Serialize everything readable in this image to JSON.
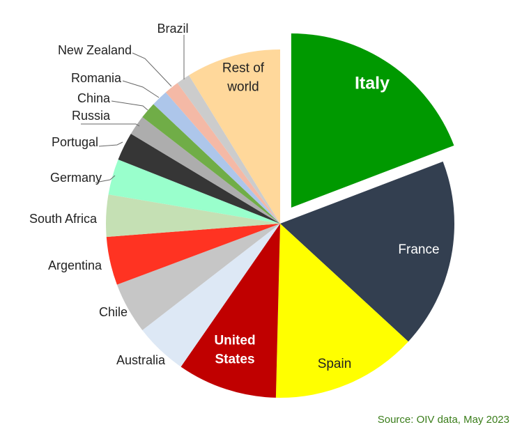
{
  "chart_data": {
    "type": "pie",
    "title": "",
    "unit": "",
    "slices": [
      {
        "name": "Italy",
        "value": 19.7,
        "color": "#009900",
        "label_color": "#ffffff",
        "label_style": "bold-large",
        "exploded": true,
        "label_lines": [
          "Italy"
        ]
      },
      {
        "name": "France",
        "value": 18.1,
        "color": "#333f50",
        "label_color": "#ffffff",
        "label_style": "normal",
        "exploded": false,
        "label_lines": [
          "France"
        ]
      },
      {
        "name": "Spain",
        "value": 13.9,
        "color": "#ffff00",
        "label_color": "#222222",
        "label_style": "normal",
        "exploded": false,
        "label_lines": [
          "Spain"
        ]
      },
      {
        "name": "United States",
        "value": 9.5,
        "color": "#c00000",
        "label_color": "#ffffff",
        "label_style": "bold",
        "exploded": false,
        "label_lines": [
          "United",
          "States"
        ]
      },
      {
        "name": "Australia",
        "value": 5.0,
        "color": "#dde8f5",
        "label_color": "#222222",
        "label_style": "outside",
        "exploded": false,
        "label_lines": [
          "Australia"
        ]
      },
      {
        "name": "Chile",
        "value": 4.9,
        "color": "#c6c6c6",
        "label_color": "#222222",
        "label_style": "outside",
        "exploded": false,
        "label_lines": [
          "Chile"
        ]
      },
      {
        "name": "Argentina",
        "value": 4.6,
        "color": "#ff3322",
        "label_color": "#222222",
        "label_style": "outside",
        "exploded": false,
        "label_lines": [
          "Argentina"
        ]
      },
      {
        "name": "South Africa",
        "value": 4.0,
        "color": "#c5e0b4",
        "label_color": "#222222",
        "label_style": "outside",
        "exploded": false,
        "label_lines": [
          "South Africa"
        ]
      },
      {
        "name": "Germany",
        "value": 3.4,
        "color": "#99ffcc",
        "label_color": "#222222",
        "label_style": "outside",
        "exploded": false,
        "label_lines": [
          "Germany"
        ]
      },
      {
        "name": "Portugal",
        "value": 2.7,
        "color": "#363636",
        "label_color": "#222222",
        "label_style": "outside",
        "exploded": false,
        "label_lines": [
          "Portugal"
        ]
      },
      {
        "name": "Russia",
        "value": 1.9,
        "color": "#adadad",
        "label_color": "#222222",
        "label_style": "outside",
        "exploded": false,
        "label_lines": [
          "Russia"
        ]
      },
      {
        "name": "China",
        "value": 1.6,
        "color": "#70ad47",
        "label_color": "#222222",
        "label_style": "outside",
        "exploded": false,
        "label_lines": [
          "China"
        ]
      },
      {
        "name": "Romania",
        "value": 1.6,
        "color": "#adc6ea",
        "label_color": "#222222",
        "label_style": "outside",
        "exploded": false,
        "label_lines": [
          "Romania"
        ]
      },
      {
        "name": "New Zealand",
        "value": 1.4,
        "color": "#f4b9a6",
        "label_color": "#222222",
        "label_style": "outside",
        "exploded": false,
        "label_lines": [
          "New Zealand"
        ]
      },
      {
        "name": "Brazil",
        "value": 1.3,
        "color": "#cccccc",
        "label_color": "#222222",
        "label_style": "outside",
        "exploded": false,
        "label_lines": [
          "Brazil"
        ]
      },
      {
        "name": "Rest of world",
        "value": 9.0,
        "color": "#ffd89b",
        "label_color": "#222222",
        "label_style": "normal",
        "exploded": false,
        "label_lines": [
          "Rest of",
          "world"
        ]
      }
    ],
    "source": "Source: OIV data, May 2023",
    "source_color": "#3a7d1a"
  }
}
